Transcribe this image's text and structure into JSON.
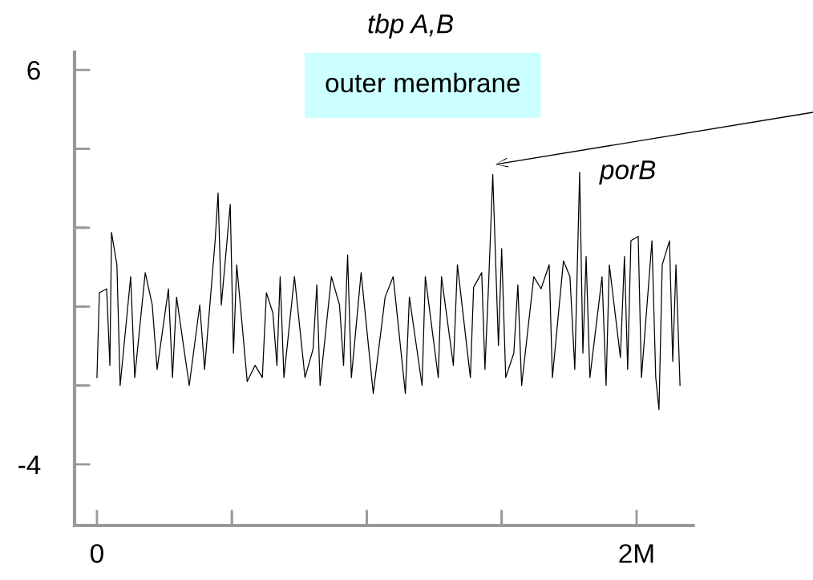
{
  "chart_data": {
    "type": "line",
    "x": [
      0.0,
      0.009,
      0.036,
      0.048,
      0.054,
      0.074,
      0.086,
      0.125,
      0.14,
      0.179,
      0.205,
      0.223,
      0.265,
      0.28,
      0.295,
      0.342,
      0.381,
      0.399,
      0.438,
      0.449,
      0.461,
      0.494,
      0.506,
      0.518,
      0.557,
      0.586,
      0.613,
      0.628,
      0.652,
      0.667,
      0.679,
      0.693,
      0.732,
      0.771,
      0.801,
      0.815,
      0.827,
      0.869,
      0.899,
      0.914,
      0.929,
      0.943,
      0.979,
      1.024,
      1.068,
      1.098,
      1.143,
      1.158,
      1.205,
      1.217,
      1.265,
      1.277,
      1.321,
      1.336,
      1.384,
      1.396,
      1.426,
      1.438,
      1.452,
      1.467,
      1.488,
      1.5,
      1.515,
      1.545,
      1.56,
      1.574,
      1.619,
      1.646,
      1.676,
      1.688,
      1.729,
      1.753,
      1.771,
      1.789,
      1.801,
      1.813,
      1.827,
      1.872,
      1.887,
      1.899,
      1.94,
      1.955,
      1.967,
      1.979,
      2.006,
      2.018,
      2.057,
      2.071,
      2.083,
      2.095,
      2.122,
      2.134,
      2.146,
      2.161
    ],
    "series": [
      {
        "color": "#000000",
        "values": [
          -1.8,
          0.35,
          0.45,
          -1.49,
          1.88,
          1.06,
          -2.0,
          0.76,
          -1.8,
          0.86,
          0.04,
          -1.59,
          0.45,
          -1.8,
          0.24,
          -2.0,
          0.04,
          -1.59,
          1.67,
          2.88,
          0.04,
          2.59,
          -1.18,
          1.06,
          -1.9,
          -1.49,
          -1.8,
          0.35,
          -0.16,
          -1.49,
          0.76,
          -1.8,
          0.76,
          -1.8,
          -1.08,
          0.55,
          -2.0,
          0.76,
          0.04,
          -1.49,
          1.31,
          -1.8,
          0.86,
          -2.2,
          0.24,
          0.76,
          -2.2,
          0.24,
          -2.0,
          0.76,
          -1.8,
          0.76,
          -1.49,
          1.06,
          -1.8,
          0.49,
          0.86,
          -1.59,
          0.65,
          3.35,
          -0.98,
          1.47,
          -1.8,
          -1.18,
          0.55,
          -2.0,
          0.76,
          0.45,
          1.06,
          -1.8,
          1.16,
          0.76,
          -1.59,
          3.41,
          -1.18,
          1.27,
          -1.8,
          0.76,
          -2.0,
          1.06,
          -1.29,
          1.27,
          -1.59,
          1.67,
          1.78,
          -1.8,
          1.67,
          -1.8,
          -2.61,
          1.06,
          1.67,
          -1.39,
          1.06,
          -2.0
        ]
      }
    ],
    "xlim": [
      -0.083,
      2.21
    ],
    "xticks": [
      0,
      {
        "value": 0.5,
        "label": null
      },
      {
        "value": 1,
        "label": null
      },
      {
        "value": 1.5,
        "label": null
      },
      {
        "value": 2,
        "label": "2M"
      }
    ],
    "ylim": [
      -5.55,
      6.45
    ],
    "yticks": [
      6,
      {
        "value": 4,
        "label": null
      },
      {
        "value": 2,
        "label": null
      },
      {
        "value": 0,
        "label": null
      },
      {
        "value": -2,
        "label": null
      },
      -4
    ],
    "grid": false,
    "legend": false,
    "marker": "none",
    "line_style": "solid",
    "annotations": [
      "tbp A,B",
      "outer membrane",
      {
        "text": "porB",
        "x": 1.789,
        "y": 3.41
      }
    ]
  }
}
